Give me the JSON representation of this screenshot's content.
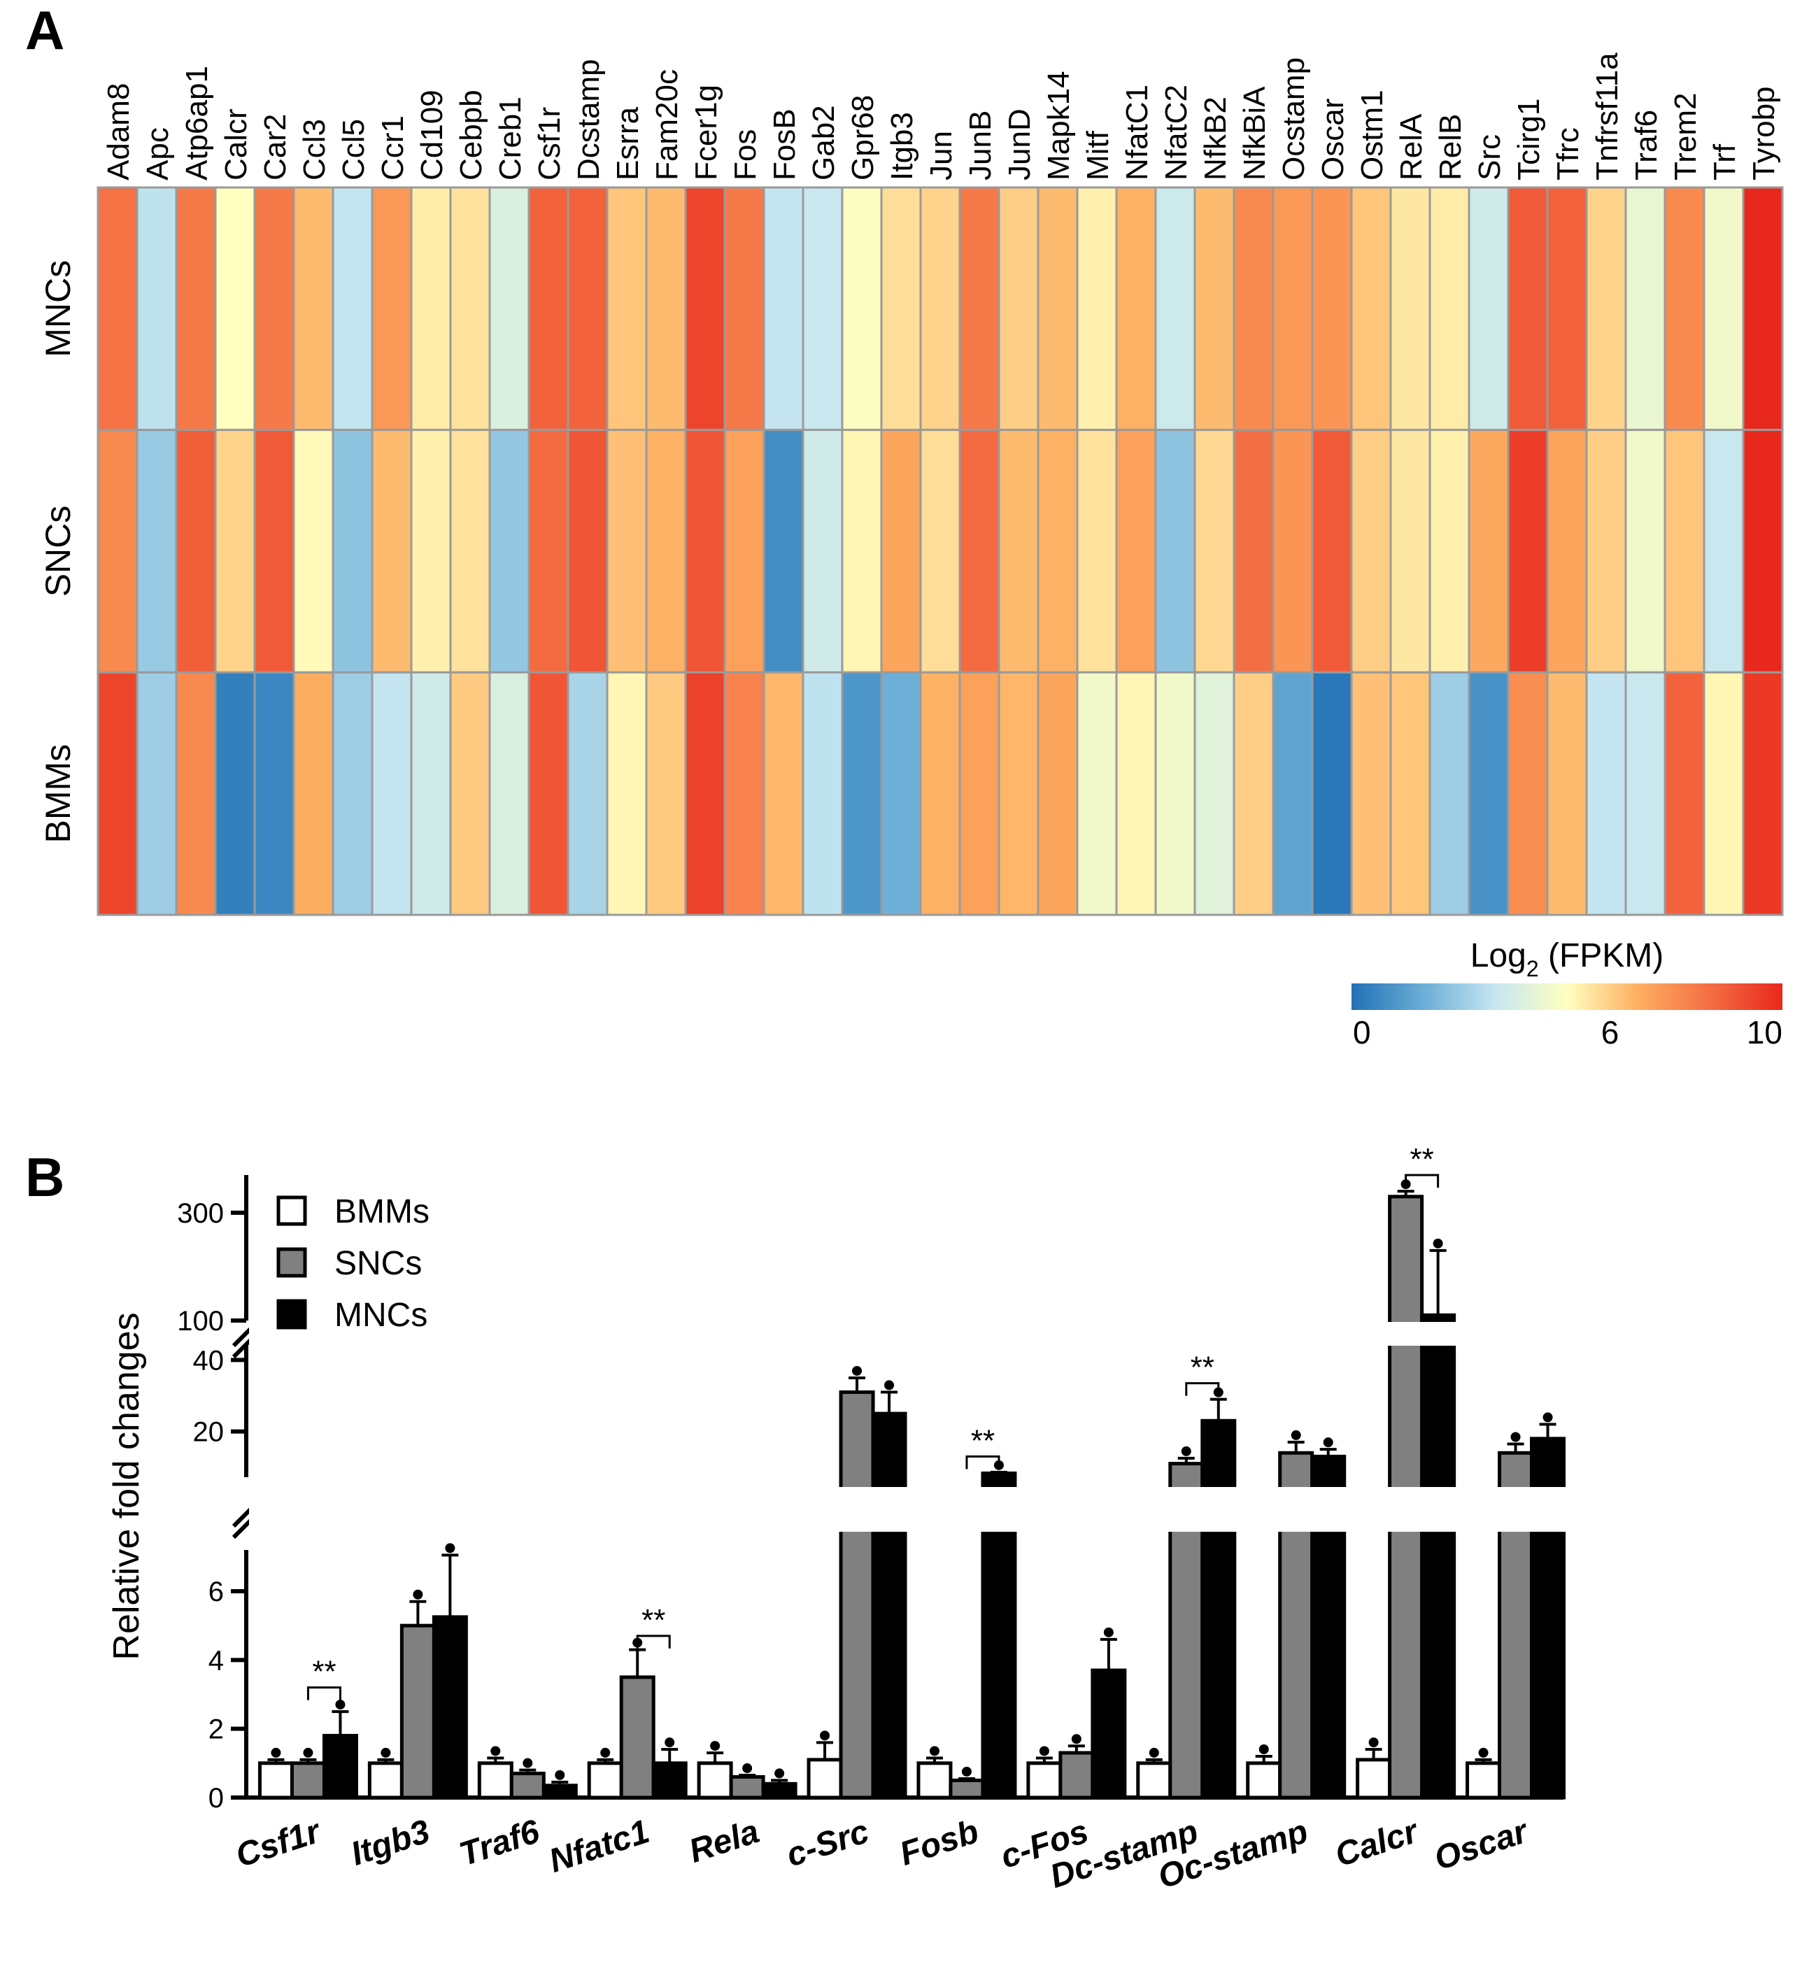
{
  "figure": {
    "panel_a_label": "A",
    "panel_b_label": "B"
  },
  "chart_data": [
    {
      "type": "heatmap",
      "title": "",
      "genes": [
        "Adam8",
        "Apc",
        "Atp6ap1",
        "Calcr",
        "Car2",
        "Ccl3",
        "Ccl5",
        "Ccr1",
        "Cd109",
        "Cebpb",
        "Creb1",
        "Csf1r",
        "Dcstamp",
        "Esrra",
        "Fam20c",
        "Fcer1g",
        "Fos",
        "FosB",
        "Gab2",
        "Gpr68",
        "Itgb3",
        "Jun",
        "JunB",
        "JunD",
        "Mapk14",
        "Mitf",
        "NfatC1",
        "NfatC2",
        "NfkB2",
        "NfkBiA",
        "Ocstamp",
        "Oscar",
        "Ostm1",
        "RelA",
        "RelB",
        "Src",
        "Tcirg1",
        "Tfrc",
        "Tnfrsf11a",
        "Traf6",
        "Trem2",
        "Trf",
        "Tyrobp"
      ],
      "rows": [
        "MNCs",
        "SNCs",
        "BMMs"
      ],
      "values": [
        [
          8.2,
          3.2,
          8.0,
          5.0,
          8.0,
          6.4,
          3.3,
          7.2,
          5.4,
          5.6,
          3.9,
          8.6,
          8.6,
          6.2,
          6.4,
          9.3,
          8.0,
          3.3,
          3.4,
          4.9,
          5.7,
          5.9,
          8.0,
          6.0,
          6.4,
          5.3,
          6.6,
          3.5,
          6.4,
          7.6,
          7.2,
          7.3,
          6.2,
          5.5,
          5.4,
          3.6,
          8.8,
          8.6,
          5.9,
          4.4,
          7.6,
          4.6,
          10.0
        ],
        [
          7.6,
          2.5,
          8.7,
          5.9,
          8.8,
          5.1,
          2.3,
          6.4,
          5.3,
          5.6,
          2.4,
          8.4,
          8.9,
          6.3,
          6.6,
          8.9,
          7.0,
          0.8,
          3.6,
          5.2,
          6.9,
          5.7,
          8.4,
          6.4,
          6.6,
          5.6,
          7.0,
          2.3,
          5.8,
          8.3,
          7.3,
          8.8,
          6.0,
          5.5,
          5.3,
          6.8,
          9.5,
          6.9,
          6.0,
          4.6,
          6.2,
          3.4,
          10.0
        ],
        [
          9.3,
          2.6,
          7.6,
          0.4,
          0.6,
          6.7,
          2.6,
          3.3,
          3.6,
          6.1,
          3.9,
          8.9,
          2.8,
          5.2,
          6.1,
          9.4,
          7.8,
          6.5,
          3.2,
          1.0,
          1.7,
          6.6,
          7.0,
          6.5,
          6.9,
          4.6,
          5.2,
          4.6,
          4.1,
          6.0,
          1.4,
          0.2,
          6.3,
          6.2,
          2.6,
          0.9,
          7.5,
          6.4,
          3.3,
          3.4,
          8.6,
          5.2,
          9.6
        ]
      ],
      "colorbar": {
        "label_prefix": "Log",
        "label_sub": "2",
        "label_suffix": " (FPKM)",
        "ticks": [
          "0",
          "6",
          "10"
        ],
        "tick_values": [
          0,
          6,
          10
        ],
        "range": [
          0,
          10
        ]
      },
      "colormap": [
        "#2171b5",
        "#6baed6",
        "#c6e6f1",
        "#ffffbf",
        "#fdae61",
        "#f46d43",
        "#e8281c"
      ]
    },
    {
      "type": "bar",
      "title": "",
      "xlabel": "",
      "ylabel": "Relative fold changes",
      "categories": [
        "Csf1r",
        "Itgb3",
        "Traf6",
        "Nfatc1",
        "Rela",
        "c-Src",
        "Fosb",
        "c-Fos",
        "Dc-stamp",
        "Oc-stamp",
        "Calcr",
        "Oscar"
      ],
      "series": [
        {
          "name": "BMMs",
          "color": "#ffffff",
          "values": [
            1.0,
            1.0,
            1.0,
            1.0,
            1.0,
            1.1,
            1.0,
            1.0,
            1.0,
            1.0,
            1.1,
            1.0
          ],
          "errors": [
            0.1,
            0.1,
            0.15,
            0.1,
            0.3,
            0.5,
            0.15,
            0.15,
            0.1,
            0.2,
            0.3,
            0.1
          ]
        },
        {
          "name": "SNCs",
          "color": "#808080",
          "values": [
            1.0,
            5.0,
            0.7,
            3.5,
            0.6,
            31,
            0.5,
            1.3,
            11,
            14,
            330,
            14
          ],
          "errors": [
            0.1,
            0.7,
            0.1,
            0.8,
            0.05,
            4,
            0.05,
            0.2,
            1.5,
            3,
            10,
            2.5
          ]
        },
        {
          "name": "MNCs",
          "color": "#000000",
          "values": [
            1.8,
            5.25,
            0.35,
            1.0,
            0.4,
            25,
            8.3,
            3.7,
            23,
            13,
            110,
            18
          ],
          "errors": [
            0.7,
            1.8,
            0.1,
            0.4,
            0.1,
            6,
            0.3,
            0.9,
            6,
            2,
            120,
            4
          ]
        }
      ],
      "y_segments": [
        {
          "range": [
            0,
            7.2
          ],
          "ticks": [
            0,
            2,
            4,
            6
          ]
        },
        {
          "range": [
            7.2,
            44
          ],
          "ticks": [
            20,
            40
          ]
        },
        {
          "range": [
            100,
            370
          ],
          "ticks": [
            100,
            300
          ]
        }
      ],
      "significance": [
        {
          "category": "Csf1r",
          "series": [
            "SNCs",
            "MNCs"
          ],
          "label": "**",
          "y": 3.2
        },
        {
          "category": "Nfatc1",
          "series": [
            "SNCs",
            "MNCs"
          ],
          "label": "**",
          "y": 4.7
        },
        {
          "category": "Fosb",
          "series": [
            "SNCs",
            "MNCs"
          ],
          "label": "**",
          "y": 13
        },
        {
          "category": "Dc-stamp",
          "series": [
            "SNCs",
            "MNCs"
          ],
          "label": "**",
          "y": 33.5
        },
        {
          "category": "Calcr",
          "series": [
            "SNCs",
            "MNCs"
          ],
          "label": "**",
          "y": 370
        }
      ],
      "legend_position": "top-left"
    }
  ]
}
